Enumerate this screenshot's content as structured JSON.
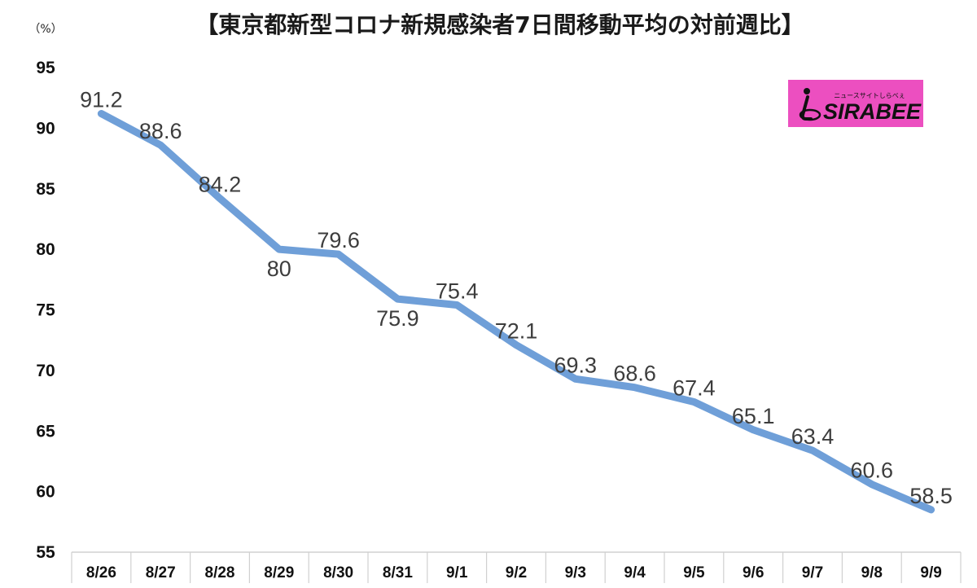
{
  "chart_data": {
    "type": "line",
    "title": "【東京都新型コロナ新規感染者7日間移動平均の対前週比】",
    "ylabel": "（%）",
    "xlabel": "",
    "ylim": [
      55,
      95
    ],
    "yticks": [
      "55",
      "60",
      "65",
      "70",
      "75",
      "80",
      "85",
      "90",
      "95"
    ],
    "categories": [
      "8/26",
      "8/27",
      "8/28",
      "8/29",
      "8/30",
      "8/31",
      "9/1",
      "9/2",
      "9/3",
      "9/4",
      "9/5",
      "9/6",
      "9/7",
      "9/8",
      "9/9"
    ],
    "series": [
      {
        "values": [
          91.2,
          88.6,
          84.2,
          80,
          79.6,
          75.9,
          75.4,
          72.1,
          69.3,
          68.6,
          67.4,
          65.1,
          63.4,
          60.6,
          58.5
        ],
        "labels": [
          "91.2",
          "88.6",
          "84.2",
          "80",
          "79.6",
          "75.9",
          "75.4",
          "72.1",
          "69.3",
          "68.6",
          "67.4",
          "65.1",
          "63.4",
          "60.6",
          "58.5"
        ]
      }
    ],
    "line_color": "#6f9fd8",
    "grid": false,
    "legend": "none"
  },
  "logo": {
    "text": "SIRABEE",
    "tagline": "ニュースサイトしらべぇ",
    "color": "#ec4fc0"
  }
}
